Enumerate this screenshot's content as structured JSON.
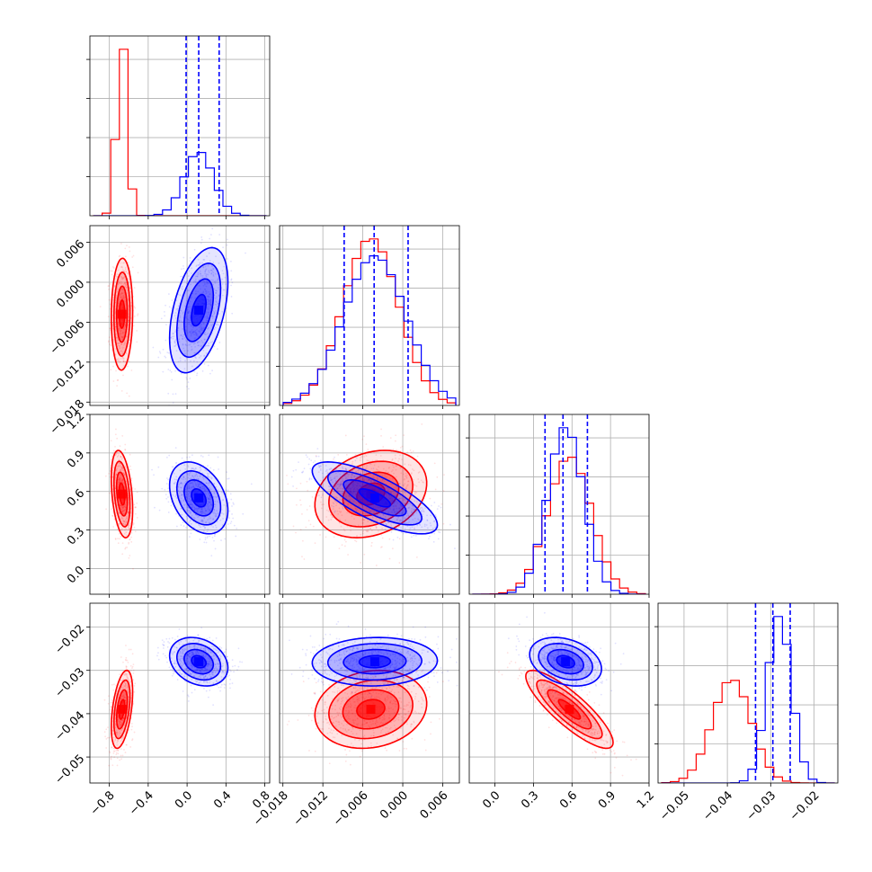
{
  "chart_data": {
    "type": "corner",
    "parameters": [
      {
        "range": [
          -1.0,
          0.85
        ],
        "ticks": [
          -0.8,
          -0.4,
          0.0,
          0.4,
          0.8
        ],
        "tick_labels": [
          "−0.8",
          "−0.4",
          "0.0",
          "0.4",
          "0.8"
        ]
      },
      {
        "range": [
          -0.0185,
          0.0085
        ],
        "ticks": [
          -0.018,
          -0.012,
          -0.006,
          0.0,
          0.006
        ],
        "tick_labels": [
          "−0.018",
          "−0.012",
          "−0.006",
          "0.000",
          "0.006"
        ]
      },
      {
        "range": [
          -0.2,
          1.2
        ],
        "ticks": [
          0.0,
          0.3,
          0.6,
          0.9,
          1.2
        ],
        "tick_labels": [
          "0.0",
          "0.3",
          "0.6",
          "0.9",
          "1.2"
        ]
      },
      {
        "range": [
          -0.056,
          -0.0145
        ],
        "ticks": [
          -0.05,
          -0.04,
          -0.03,
          -0.02
        ],
        "tick_labels": [
          "−0.05",
          "−0.04",
          "−0.03",
          "−0.02"
        ]
      }
    ],
    "series": [
      {
        "color": "#ff0000",
        "means": [
          -0.67,
          -0.0048,
          0.58,
          -0.039
        ],
        "sds": [
          0.055,
          0.0042,
          0.17,
          0.0045
        ],
        "correlations": {
          "1-0": 0.05,
          "2-0": -0.35,
          "2-1": 0.25,
          "3-0": 0.45,
          "3-1": 0.15,
          "3-2": -0.85
        },
        "quantiles": null
      },
      {
        "color": "#0000ff",
        "means": [
          0.12,
          -0.0042,
          0.55,
          -0.028
        ],
        "sds": [
          0.15,
          0.0047,
          0.14,
          0.0028
        ],
        "correlations": {
          "1-0": 0.45,
          "2-0": -0.35,
          "2-1": -0.75,
          "3-0": -0.25,
          "3-1": 0.05,
          "3-2": -0.3
        },
        "quantiles": [
          [
            -0.01,
            0.12,
            0.33
          ],
          [
            -0.0088,
            -0.0043,
            0.0008
          ],
          [
            0.39,
            0.53,
            0.72
          ],
          [
            -0.0335,
            -0.0295,
            -0.0255
          ]
        ]
      }
    ],
    "colors": {
      "series_a": "#ff0000",
      "series_b": "#0000ff"
    },
    "grid": true,
    "legend": "none"
  }
}
